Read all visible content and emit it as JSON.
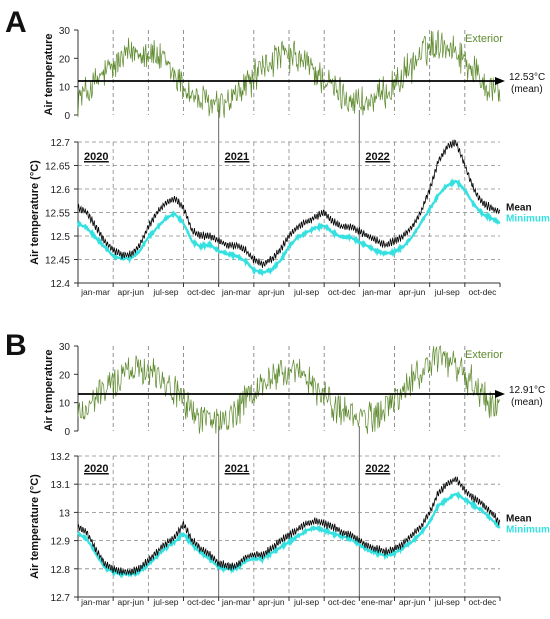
{
  "chart_data": [
    {
      "panel_letter": "A",
      "type": "line",
      "years": [
        "2020",
        "2021",
        "2022"
      ],
      "months": [
        "jan-mar",
        "apr-jun",
        "jul-sep",
        "oct-dec",
        "jan-mar",
        "apr-jun",
        "jul-sep",
        "oct-dec",
        "jan-mar",
        "apr-jun",
        "jul-sep",
        "oct-dec"
      ],
      "top": {
        "ylabel": "Air temperature",
        "ylim": [
          0,
          30
        ],
        "ticks": [
          0,
          10,
          20,
          30
        ],
        "series_label": "Exterior",
        "series_color": "#5e8a2e",
        "mean_value": 12.53,
        "mean_label": "12.53°C",
        "mean_sub": "(mean)",
        "exterior_monthly": [
          6,
          9,
          14,
          17,
          21,
          23,
          22,
          19,
          14,
          9,
          5,
          4,
          3,
          6,
          11,
          15,
          19,
          21,
          20,
          18,
          14,
          10,
          7,
          5,
          4,
          6,
          10,
          14,
          19,
          24,
          26,
          24,
          20,
          15,
          10,
          9
        ]
      },
      "bottom": {
        "ylabel": "Air temperature (°C)",
        "ylim": [
          12.4,
          12.7
        ],
        "ticks": [
          "12.4",
          "12.45",
          "12.5",
          "12.55",
          "12.6",
          "12.65",
          "12.7"
        ],
        "mean_label": "Mean",
        "min_label": "Minimum",
        "mean_color": "#000000",
        "min_color": "#35e0e0",
        "mean_values": [
          12.56,
          12.55,
          12.52,
          12.49,
          12.47,
          12.46,
          12.46,
          12.48,
          12.52,
          12.55,
          12.57,
          12.58,
          12.56,
          12.51,
          12.5,
          12.5,
          12.49,
          12.48,
          12.48,
          12.47,
          12.45,
          12.44,
          12.45,
          12.47,
          12.5,
          12.52,
          12.53,
          12.54,
          12.55,
          12.53,
          12.52,
          12.52,
          12.51,
          12.5,
          12.49,
          12.48,
          12.49,
          12.5,
          12.52,
          12.55,
          12.6,
          12.66,
          12.69,
          12.7,
          12.65,
          12.6,
          12.57,
          12.56,
          12.55
        ],
        "min_values": [
          12.53,
          12.52,
          12.5,
          12.48,
          12.46,
          12.455,
          12.455,
          12.47,
          12.5,
          12.52,
          12.54,
          12.55,
          12.53,
          12.49,
          12.48,
          12.485,
          12.47,
          12.465,
          12.46,
          12.45,
          12.43,
          12.425,
          12.43,
          12.45,
          12.48,
          12.5,
          12.51,
          12.52,
          12.525,
          12.51,
          12.5,
          12.5,
          12.49,
          12.48,
          12.47,
          12.465,
          12.47,
          12.48,
          12.5,
          12.53,
          12.56,
          12.59,
          12.61,
          12.62,
          12.6,
          12.57,
          12.55,
          12.54,
          12.53
        ]
      }
    },
    {
      "panel_letter": "B",
      "type": "line",
      "years": [
        "2020",
        "2021",
        "2022"
      ],
      "months": [
        "jan-mar",
        "apr-jun",
        "jul-sep",
        "oct-dec",
        "jan-mar",
        "apr-jun",
        "jul-sep",
        "oct-dec",
        "ene-mar",
        "apr-jun",
        "jul-sep",
        "oct-dec"
      ],
      "top": {
        "ylabel": "Air temperature",
        "ylim": [
          0,
          30
        ],
        "ticks": [
          0,
          10,
          20,
          30
        ],
        "series_label": "Exterior",
        "series_color": "#5e8a2e",
        "mean_value": 12.91,
        "mean_label": "12.91°C",
        "mean_sub": "(mean)",
        "exterior_monthly": [
          6,
          9,
          14,
          17,
          21,
          23,
          22,
          19,
          14,
          9,
          5,
          4,
          3,
          6,
          11,
          15,
          19,
          21,
          20,
          18,
          14,
          10,
          7,
          5,
          4,
          6,
          10,
          14,
          19,
          24,
          26,
          24,
          20,
          15,
          10,
          9
        ]
      },
      "bottom": {
        "ylabel": "Air temperature (°C)",
        "ylim": [
          12.7,
          13.2
        ],
        "ticks": [
          "12.7",
          "12.8",
          "12.9",
          "13",
          "13.1",
          "13.2"
        ],
        "mean_label": "Mean",
        "min_label": "Minimum",
        "mean_color": "#000000",
        "min_color": "#35e0e0",
        "mean_values": [
          12.95,
          12.93,
          12.87,
          12.82,
          12.8,
          12.79,
          12.79,
          12.8,
          12.83,
          12.86,
          12.89,
          12.91,
          12.96,
          12.9,
          12.87,
          12.85,
          12.82,
          12.81,
          12.81,
          12.84,
          12.85,
          12.85,
          12.87,
          12.9,
          12.92,
          12.94,
          12.96,
          12.97,
          12.96,
          12.95,
          12.93,
          12.92,
          12.9,
          12.88,
          12.87,
          12.86,
          12.87,
          12.89,
          12.92,
          12.95,
          13.0,
          13.07,
          13.1,
          13.12,
          13.08,
          13.05,
          13.03,
          13.0,
          12.96
        ],
        "min_values": [
          12.93,
          12.91,
          12.86,
          12.81,
          12.795,
          12.785,
          12.785,
          12.795,
          12.82,
          12.85,
          12.88,
          12.9,
          12.93,
          12.89,
          12.86,
          12.84,
          12.81,
          12.805,
          12.805,
          12.83,
          12.84,
          12.84,
          12.86,
          12.88,
          12.9,
          12.92,
          12.94,
          12.95,
          12.94,
          12.93,
          12.92,
          12.91,
          12.89,
          12.87,
          12.86,
          12.85,
          12.86,
          12.88,
          12.9,
          12.93,
          12.97,
          13.03,
          13.05,
          13.07,
          13.05,
          13.03,
          13.01,
          12.98,
          12.95
        ]
      }
    }
  ]
}
